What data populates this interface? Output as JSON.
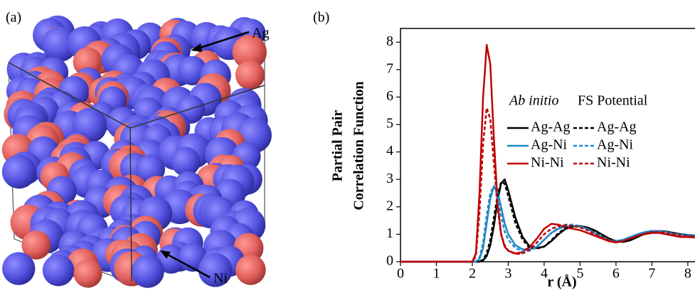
{
  "panel_a": {
    "label": "(a)",
    "annotations": [
      "Ag",
      "Ni"
    ]
  },
  "chart_data": {
    "type": "line",
    "panel_label": "(b)",
    "ylabel": [
      "Partial Pair",
      "Correlation Function"
    ],
    "xlabel": "r (Å)",
    "legend_titles": [
      "Ab initio",
      "FS Potential"
    ],
    "xlim": [
      0,
      8.2
    ],
    "ylim": [
      0,
      8.5
    ],
    "xticks": [
      0,
      1,
      2,
      3,
      4,
      5,
      6,
      7,
      8
    ],
    "yticks": [
      0,
      1,
      2,
      3,
      4,
      5,
      6,
      7,
      8
    ],
    "x": [
      0,
      1.9,
      2.0,
      2.1,
      2.2,
      2.3,
      2.4,
      2.5,
      2.6,
      2.7,
      2.8,
      2.9,
      3.0,
      3.2,
      3.4,
      3.6,
      3.8,
      4.0,
      4.2,
      4.4,
      4.6,
      4.8,
      5.0,
      5.2,
      5.4,
      5.6,
      5.8,
      6.0,
      6.2,
      6.4,
      6.6,
      6.8,
      7.0,
      7.2,
      7.4,
      7.6,
      7.8,
      8.0,
      8.2
    ],
    "series": [
      {
        "name": "Ag-Ag",
        "color": "#000000",
        "linestyle": "solid",
        "values": [
          0,
          0,
          0,
          0,
          0,
          0.05,
          0.2,
          0.6,
          1.3,
          2.2,
          2.85,
          3.0,
          2.6,
          1.6,
          0.9,
          0.55,
          0.5,
          0.55,
          0.75,
          1.0,
          1.2,
          1.28,
          1.3,
          1.25,
          1.15,
          1.0,
          0.85,
          0.75,
          0.72,
          0.78,
          0.9,
          1.02,
          1.1,
          1.12,
          1.1,
          1.05,
          1.0,
          0.97,
          0.95
        ]
      },
      {
        "name": "Ag-Ni",
        "color": "#1f88c9",
        "linestyle": "solid",
        "values": [
          0,
          0,
          0,
          0,
          0.1,
          0.5,
          1.4,
          2.3,
          2.75,
          2.6,
          2.0,
          1.4,
          1.0,
          0.6,
          0.45,
          0.45,
          0.55,
          0.8,
          1.05,
          1.2,
          1.28,
          1.3,
          1.28,
          1.2,
          1.05,
          0.9,
          0.78,
          0.75,
          0.8,
          0.9,
          1.0,
          1.08,
          1.12,
          1.12,
          1.08,
          1.02,
          0.98,
          0.95,
          0.93
        ]
      },
      {
        "name": "Ni-Ni",
        "color": "#c00000",
        "linestyle": "solid",
        "values": [
          0,
          0,
          0,
          0.3,
          2.5,
          6.0,
          7.9,
          7.2,
          4.5,
          2.2,
          1.0,
          0.55,
          0.4,
          0.3,
          0.35,
          0.55,
          0.85,
          1.2,
          1.38,
          1.35,
          1.25,
          1.2,
          1.15,
          1.05,
          0.95,
          0.85,
          0.75,
          0.7,
          0.75,
          0.85,
          0.95,
          1.0,
          1.05,
          1.05,
          1.0,
          0.95,
          0.9,
          0.9,
          0.88
        ]
      },
      {
        "name": "Ag-Ag",
        "color": "#000000",
        "linestyle": "dashed",
        "values": [
          0,
          0,
          0,
          0,
          0,
          0.08,
          0.3,
          0.8,
          1.6,
          2.4,
          2.9,
          2.85,
          2.4,
          1.4,
          0.8,
          0.5,
          0.48,
          0.55,
          0.78,
          1.05,
          1.22,
          1.3,
          1.3,
          1.25,
          1.12,
          0.98,
          0.83,
          0.75,
          0.74,
          0.8,
          0.92,
          1.03,
          1.1,
          1.12,
          1.1,
          1.05,
          1.0,
          0.97,
          0.95
        ]
      },
      {
        "name": "Ag-Ni",
        "color": "#1f88c9",
        "linestyle": "dashed",
        "values": [
          0,
          0,
          0,
          0,
          0.15,
          0.7,
          1.7,
          2.5,
          2.75,
          2.4,
          1.7,
          1.1,
          0.8,
          0.5,
          0.38,
          0.4,
          0.55,
          0.8,
          1.05,
          1.25,
          1.35,
          1.35,
          1.3,
          1.2,
          1.05,
          0.9,
          0.8,
          0.75,
          0.8,
          0.9,
          1.0,
          1.08,
          1.12,
          1.12,
          1.08,
          1.02,
          0.98,
          0.95,
          0.93
        ]
      },
      {
        "name": "Ni-Ni",
        "color": "#c00000",
        "linestyle": "dashed",
        "values": [
          0,
          0,
          0,
          0.2,
          1.8,
          4.3,
          5.6,
          5.2,
          3.6,
          2.0,
          1.0,
          0.6,
          0.4,
          0.28,
          0.3,
          0.45,
          0.7,
          1.0,
          1.2,
          1.3,
          1.33,
          1.3,
          1.25,
          1.15,
          1.0,
          0.88,
          0.78,
          0.72,
          0.75,
          0.85,
          0.95,
          1.02,
          1.08,
          1.08,
          1.05,
          1.0,
          0.95,
          0.92,
          0.9
        ]
      }
    ]
  }
}
